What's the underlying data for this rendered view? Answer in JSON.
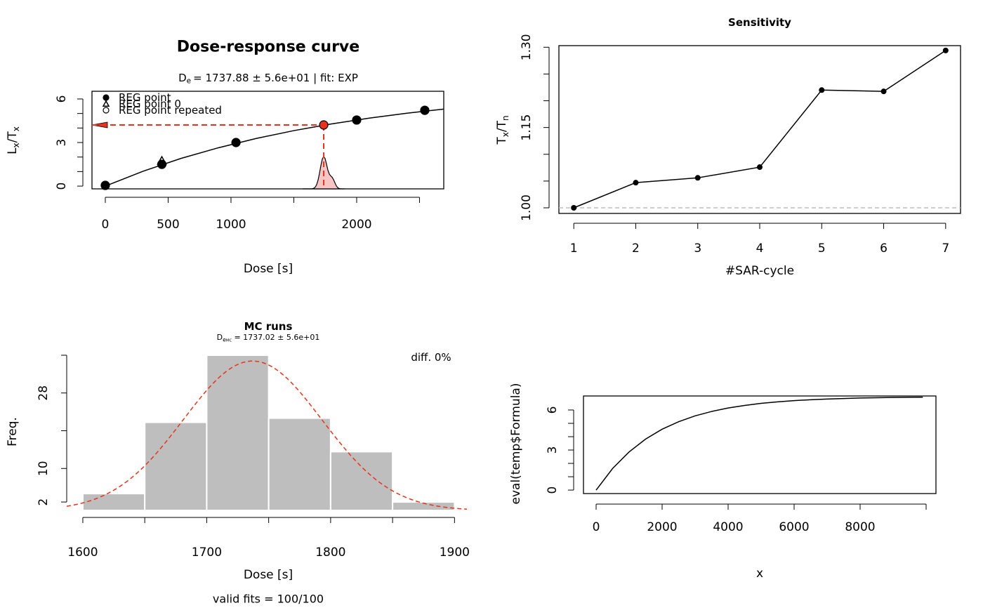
{
  "chart_data": [
    {
      "type": "scatter",
      "title": "Dose-response curve",
      "subtitle": {
        "symbol": "D",
        "subscript": "e",
        "text": "= 1737.88 ± 5.6e+01  | fit:  EXP"
      },
      "x_label": "Dose [s]",
      "y_label": {
        "parts": [
          "L",
          "x",
          "/T",
          "x"
        ]
      },
      "xlim": [
        -106,
        2693
      ],
      "ylim": [
        -0.19,
        6.53
      ],
      "xticks": [
        0,
        500,
        1000,
        2000
      ],
      "xminorticks": [
        1500,
        2500
      ],
      "yticks": [
        0,
        3,
        6
      ],
      "yminorticks": [
        1,
        2,
        4,
        5
      ],
      "series": [
        {
          "name": "REG point",
          "marker": "dot",
          "color": "#000000",
          "x": [
            0,
            450,
            1040,
            2000,
            2542
          ],
          "values": [
            0.05,
            1.5,
            3.0,
            4.55,
            5.22
          ]
        },
        {
          "name": "REG point 0",
          "marker": "triangle",
          "color": "#000000",
          "x": [
            450
          ],
          "values": [
            1.74
          ]
        },
        {
          "name": "REG point repeated",
          "marker": "circle",
          "color": "#000000",
          "x": [],
          "values": []
        }
      ],
      "fit": {
        "color": "#000000",
        "x": [
          0,
          300,
          600,
          900,
          1200,
          1500,
          1800,
          2100,
          2400,
          2700
        ],
        "values": [
          0,
          1.02,
          1.9,
          2.64,
          3.28,
          3.82,
          4.28,
          4.68,
          5.02,
          5.31
        ]
      },
      "de": {
        "x": 1737.88,
        "y": 4.21,
        "color": "#e8331c",
        "density_color": "#f8c5c5"
      }
    },
    {
      "type": "line",
      "title": "Sensitivity",
      "x_label": "#SAR-cycle",
      "y_label": {
        "parts": [
          "T",
          "x",
          "/T",
          "n"
        ]
      },
      "x": [
        1,
        2,
        3,
        4,
        5,
        6,
        7
      ],
      "values": [
        1.0,
        1.047,
        1.056,
        1.076,
        1.22,
        1.2175,
        1.294
      ],
      "color": "#000000",
      "marker": "dot",
      "xlim": [
        0.76,
        7.24
      ],
      "ylim": [
        0.9895,
        1.303
      ],
      "xticks": [
        1,
        2,
        3,
        4,
        5,
        6,
        7
      ],
      "yticks": [
        {
          "value": 1,
          "label": "1.00"
        },
        1.15,
        {
          "value": 1.3,
          "label": "1.30"
        }
      ],
      "yminorticks": [
        1.05,
        1.1,
        1.2,
        1.25
      ],
      "reference_line": {
        "value": 1,
        "color": "#bebebe"
      }
    },
    {
      "type": "histogram",
      "title": "MC runs",
      "subtitle": {
        "symbol": "D",
        "subscript": "e",
        "subsubscript": "MC",
        "text": "= 1737.02 ± 5.6e+01"
      },
      "x_label": "Dose [s]",
      "y_label": "Freq.",
      "bins": [
        1600,
        1650,
        1700,
        1750,
        1800,
        1850,
        1900
      ],
      "values": [
        4,
        21,
        37,
        22,
        14,
        2
      ],
      "color": "#bebebe",
      "normal_curve": {
        "mean": 1737.02,
        "sd": 56,
        "color": "#e8331c"
      },
      "xlim": [
        1587,
        1910
      ],
      "ylim": [
        0,
        38
      ],
      "xticks": [
        1600,
        1700,
        1800,
        1900
      ],
      "xminorticks": [
        1650,
        1750,
        1850
      ],
      "yticks": [
        2,
        10,
        28
      ],
      "yminorticks": [
        19,
        37
      ],
      "annotation": "diff. 0%",
      "footnote": "valid fits = 100/100"
    },
    {
      "type": "line",
      "x_label": "x",
      "y_label": "eval(temp$Formula)",
      "color": "#000000",
      "x": [
        0,
        500,
        1000,
        1500,
        2000,
        2500,
        3000,
        3500,
        4000,
        4500,
        5000,
        5500,
        6000,
        6500,
        7000,
        7500,
        8000,
        8500,
        9000,
        9500,
        9900
      ],
      "values": [
        0,
        1.62,
        2.86,
        3.82,
        4.56,
        5.12,
        5.56,
        5.89,
        6.15,
        6.34,
        6.5,
        6.61,
        6.7,
        6.77,
        6.82,
        6.86,
        6.9,
        6.92,
        6.94,
        6.95,
        6.96
      ],
      "xlim": [
        -383,
        10298
      ],
      "ylim": [
        -0.26,
        7.05
      ],
      "xticks": [
        0,
        2000,
        4000,
        6000,
        8000
      ],
      "xminorticks": [
        10000
      ],
      "yticks": [
        0,
        3,
        6
      ],
      "yminorticks": [
        1,
        2,
        4,
        5
      ]
    }
  ]
}
